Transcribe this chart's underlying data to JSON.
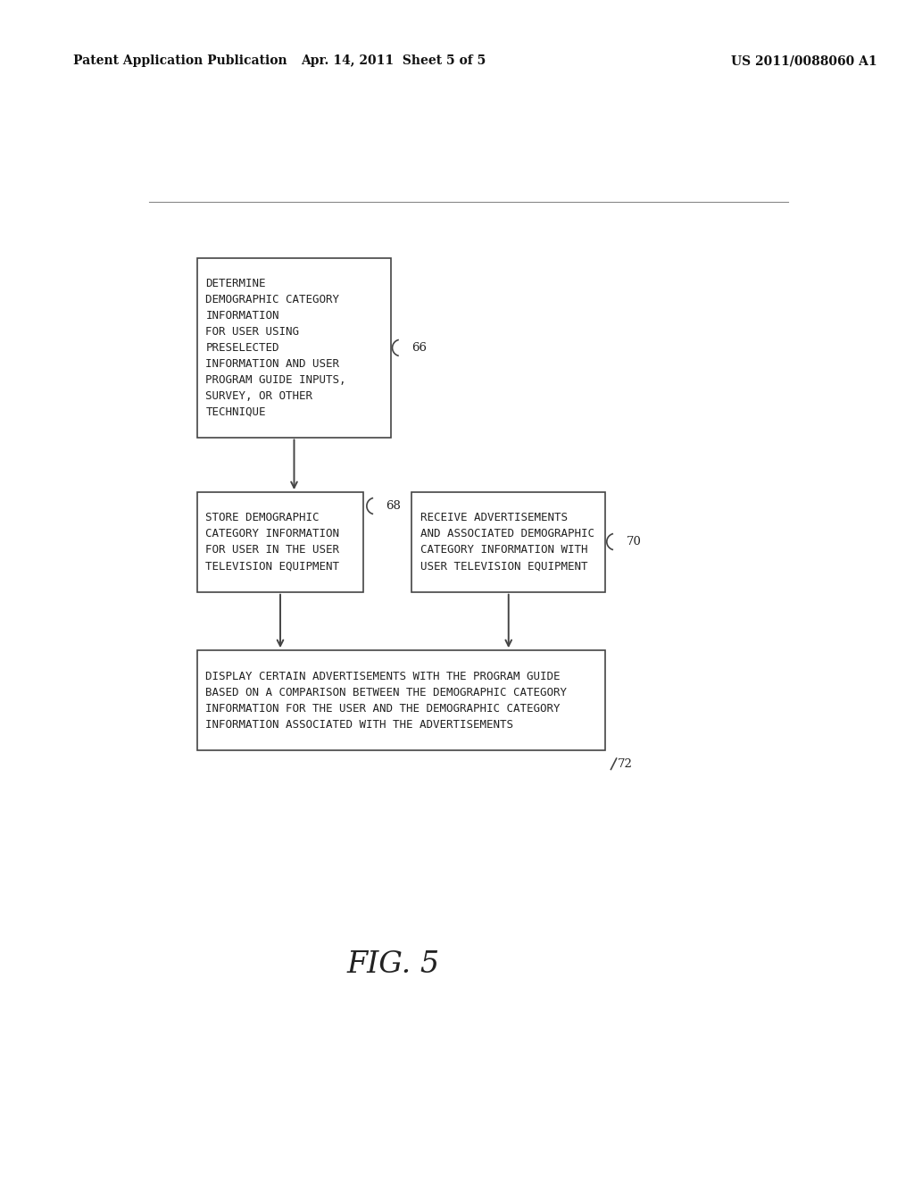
{
  "header_left": "Patent Application Publication",
  "header_mid": "Apr. 14, 2011  Sheet 5 of 5",
  "header_right": "US 2011/0088060 A1",
  "figure_label": "FIG. 5",
  "box1_text": "DETERMINE\nDEMOGRAPHIC CATEGORY\nINFORMATION\nFOR USER USING\nPRESELECTED\nINFORMATION AND USER\nPROGRAM GUIDE INPUTS,\nSURVEY, OR OTHER\nTECHNIQUE",
  "box1_label": "66",
  "box2_text": "STORE DEMOGRAPHIC\nCATEGORY INFORMATION\nFOR USER IN THE USER\nTELEVISION EQUIPMENT",
  "box2_label": "68",
  "box3_text": "RECEIVE ADVERTISEMENTS\nAND ASSOCIATED DEMOGRAPHIC\nCATEGORY INFORMATION WITH\nUSER TELEVISION EQUIPMENT",
  "box3_label": "70",
  "box4_text": "DISPLAY CERTAIN ADVERTISEMENTS WITH THE PROGRAM GUIDE\nBASED ON A COMPARISON BETWEEN THE DEMOGRAPHIC CATEGORY\nINFORMATION FOR THE USER AND THE DEMOGRAPHIC CATEGORY\nINFORMATION ASSOCIATED WITH THE ADVERTISEMENTS",
  "box4_label": "72",
  "bg_color": "#ffffff",
  "box_edge_color": "#444444",
  "text_color": "#222222",
  "header_color": "#111111",
  "arrow_color": "#444444",
  "header_line_color": "#888888",
  "font_size_box": 9.0,
  "font_size_label": 9.5,
  "font_size_header": 10.0,
  "font_size_fig": 24
}
